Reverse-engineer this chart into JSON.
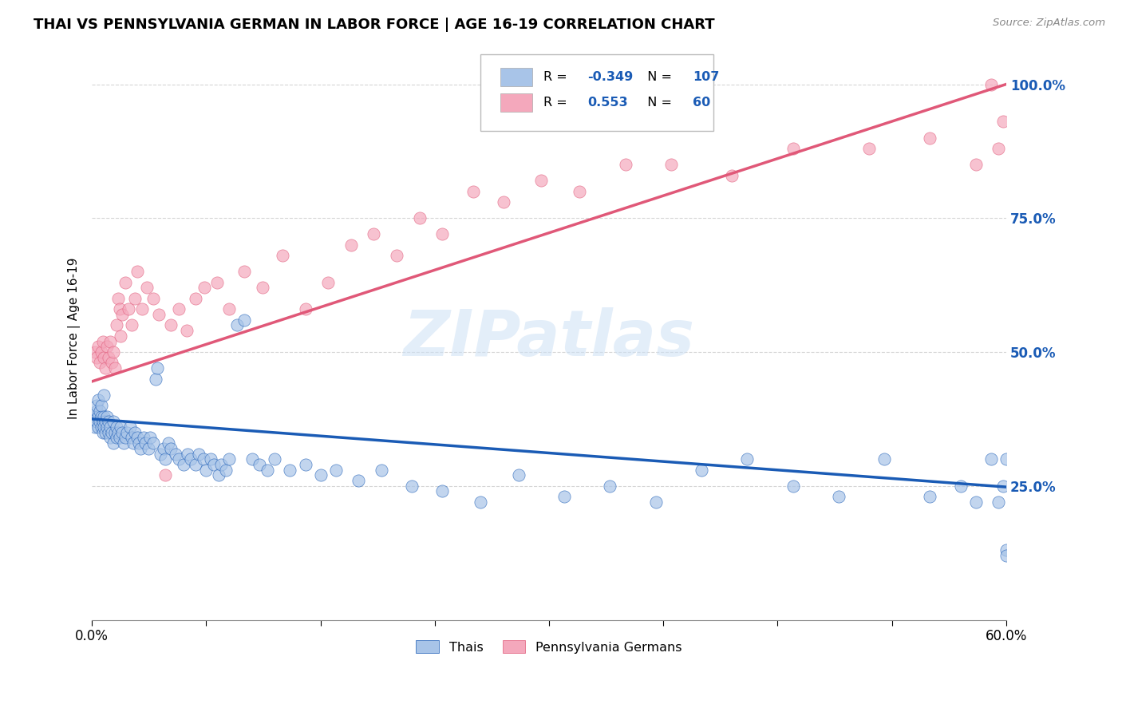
{
  "title": "THAI VS PENNSYLVANIA GERMAN IN LABOR FORCE | AGE 16-19 CORRELATION CHART",
  "source": "Source: ZipAtlas.com",
  "ylabel": "In Labor Force | Age 16-19",
  "xlim": [
    0.0,
    0.6
  ],
  "ylim": [
    0.0,
    1.05
  ],
  "yticks": [
    0.25,
    0.5,
    0.75,
    1.0
  ],
  "yticklabels": [
    "25.0%",
    "50.0%",
    "75.0%",
    "100.0%"
  ],
  "xticks": [
    0.0,
    0.075,
    0.15,
    0.225,
    0.3,
    0.375,
    0.45,
    0.525,
    0.6
  ],
  "xticklabels": [
    "0.0%",
    "",
    "",
    "",
    "",
    "",
    "",
    "",
    "60.0%"
  ],
  "thai_R": -0.349,
  "thai_N": 107,
  "pagerman_R": 0.553,
  "pagerman_N": 60,
  "thai_color": "#A8C4E8",
  "pagerman_color": "#F4A8BC",
  "thai_line_color": "#1A5BB5",
  "pagerman_line_color": "#E05878",
  "watermark": "ZIPatlas",
  "background_color": "#ffffff",
  "grid_color": "#cccccc",
  "thai_line_x0": 0.0,
  "thai_line_y0": 0.375,
  "thai_line_x1": 0.6,
  "thai_line_y1": 0.248,
  "pagerman_line_x0": 0.0,
  "pagerman_line_y0": 0.445,
  "pagerman_line_x1": 0.6,
  "pagerman_line_y1": 1.0,
  "thai_x": [
    0.001,
    0.002,
    0.002,
    0.003,
    0.003,
    0.003,
    0.004,
    0.004,
    0.004,
    0.005,
    0.005,
    0.006,
    0.006,
    0.006,
    0.007,
    0.007,
    0.008,
    0.008,
    0.008,
    0.009,
    0.009,
    0.01,
    0.01,
    0.011,
    0.011,
    0.012,
    0.012,
    0.013,
    0.014,
    0.014,
    0.015,
    0.016,
    0.016,
    0.017,
    0.018,
    0.019,
    0.02,
    0.021,
    0.022,
    0.023,
    0.025,
    0.026,
    0.027,
    0.028,
    0.03,
    0.031,
    0.032,
    0.034,
    0.035,
    0.037,
    0.038,
    0.04,
    0.042,
    0.043,
    0.045,
    0.047,
    0.048,
    0.05,
    0.052,
    0.055,
    0.057,
    0.06,
    0.063,
    0.065,
    0.068,
    0.07,
    0.073,
    0.075,
    0.078,
    0.08,
    0.083,
    0.085,
    0.088,
    0.09,
    0.095,
    0.1,
    0.105,
    0.11,
    0.115,
    0.12,
    0.13,
    0.14,
    0.15,
    0.16,
    0.175,
    0.19,
    0.21,
    0.23,
    0.255,
    0.28,
    0.31,
    0.34,
    0.37,
    0.4,
    0.43,
    0.46,
    0.49,
    0.52,
    0.55,
    0.57,
    0.58,
    0.59,
    0.595,
    0.598,
    0.6,
    0.6,
    0.6
  ],
  "thai_y": [
    0.375,
    0.38,
    0.36,
    0.39,
    0.37,
    0.4,
    0.38,
    0.36,
    0.41,
    0.37,
    0.39,
    0.38,
    0.36,
    0.4,
    0.37,
    0.35,
    0.38,
    0.36,
    0.42,
    0.37,
    0.35,
    0.36,
    0.38,
    0.35,
    0.37,
    0.34,
    0.36,
    0.35,
    0.37,
    0.33,
    0.35,
    0.34,
    0.36,
    0.35,
    0.34,
    0.36,
    0.35,
    0.33,
    0.34,
    0.35,
    0.36,
    0.34,
    0.33,
    0.35,
    0.34,
    0.33,
    0.32,
    0.34,
    0.33,
    0.32,
    0.34,
    0.33,
    0.45,
    0.47,
    0.31,
    0.32,
    0.3,
    0.33,
    0.32,
    0.31,
    0.3,
    0.29,
    0.31,
    0.3,
    0.29,
    0.31,
    0.3,
    0.28,
    0.3,
    0.29,
    0.27,
    0.29,
    0.28,
    0.3,
    0.55,
    0.56,
    0.3,
    0.29,
    0.28,
    0.3,
    0.28,
    0.29,
    0.27,
    0.28,
    0.26,
    0.28,
    0.25,
    0.24,
    0.22,
    0.27,
    0.23,
    0.25,
    0.22,
    0.28,
    0.3,
    0.25,
    0.23,
    0.3,
    0.23,
    0.25,
    0.22,
    0.3,
    0.22,
    0.25,
    0.3,
    0.13,
    0.12
  ],
  "pagerman_x": [
    0.002,
    0.003,
    0.004,
    0.005,
    0.006,
    0.007,
    0.008,
    0.009,
    0.01,
    0.011,
    0.012,
    0.013,
    0.014,
    0.015,
    0.016,
    0.017,
    0.018,
    0.019,
    0.02,
    0.022,
    0.024,
    0.026,
    0.028,
    0.03,
    0.033,
    0.036,
    0.04,
    0.044,
    0.048,
    0.052,
    0.057,
    0.062,
    0.068,
    0.074,
    0.082,
    0.09,
    0.1,
    0.112,
    0.125,
    0.14,
    0.155,
    0.17,
    0.185,
    0.2,
    0.215,
    0.23,
    0.25,
    0.27,
    0.295,
    0.32,
    0.35,
    0.38,
    0.42,
    0.46,
    0.51,
    0.55,
    0.58,
    0.59,
    0.595,
    0.598
  ],
  "pagerman_y": [
    0.5,
    0.49,
    0.51,
    0.48,
    0.5,
    0.52,
    0.49,
    0.47,
    0.51,
    0.49,
    0.52,
    0.48,
    0.5,
    0.47,
    0.55,
    0.6,
    0.58,
    0.53,
    0.57,
    0.63,
    0.58,
    0.55,
    0.6,
    0.65,
    0.58,
    0.62,
    0.6,
    0.57,
    0.27,
    0.55,
    0.58,
    0.54,
    0.6,
    0.62,
    0.63,
    0.58,
    0.65,
    0.62,
    0.68,
    0.58,
    0.63,
    0.7,
    0.72,
    0.68,
    0.75,
    0.72,
    0.8,
    0.78,
    0.82,
    0.8,
    0.85,
    0.85,
    0.83,
    0.88,
    0.88,
    0.9,
    0.85,
    1.0,
    0.88,
    0.93
  ]
}
